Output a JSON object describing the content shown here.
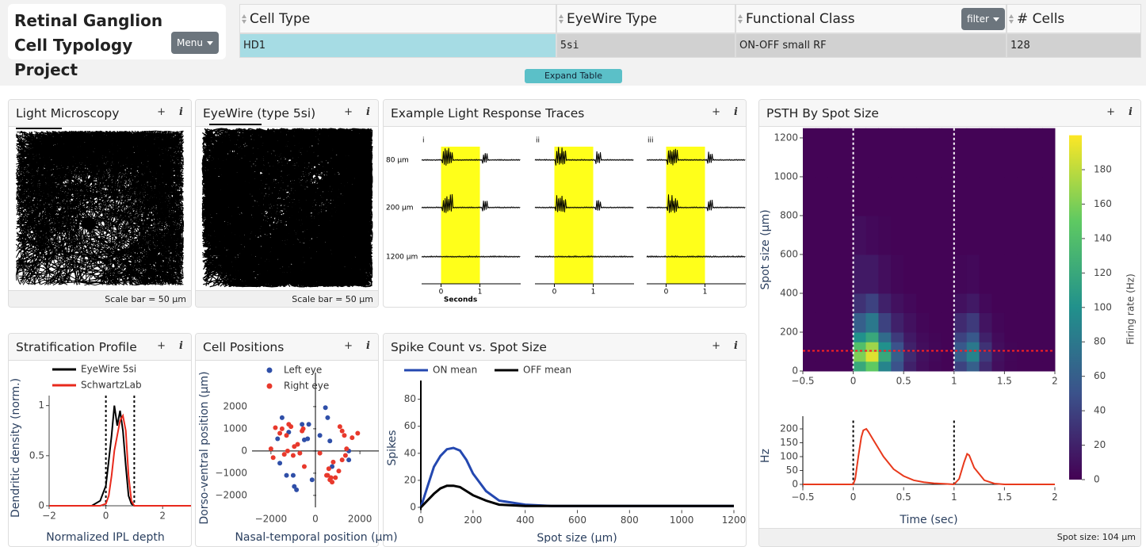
{
  "header": {
    "title": "Retinal Ganglion Cell Typology Project",
    "menu": "Menu"
  },
  "table": {
    "columns": [
      "Cell Type",
      "EyeWire Type",
      "Functional Class",
      "# Cells"
    ],
    "filter": "filter",
    "rows": [
      [
        "HD1",
        "5si",
        "ON-OFF small RF",
        128
      ]
    ],
    "expand": "Expand Table"
  },
  "panel_buttons": {
    "add": "+",
    "info": "i"
  },
  "panels": [
    {
      "title": "Light Microscopy",
      "footer": "Scale bar = 50 µm"
    },
    {
      "title": "EyeWire (type 5si)",
      "footer": "Scale bar = 50 µm"
    },
    {
      "title": "Example Light Response Traces",
      "chart": {
        "type": "traces",
        "groups": [
          "i",
          "ii",
          "iii"
        ],
        "rows": [
          "80 µm",
          "200 µm",
          "1200 µm"
        ],
        "xlabel": "Seconds",
        "xlim": [
          -0.5,
          2.05
        ],
        "xticks": [
          0,
          1
        ],
        "stimulus": [
          0,
          1
        ]
      }
    },
    {
      "title": "Stratification Profile",
      "chart": {
        "type": "line",
        "ylabel": "Dendritic density (norm.)",
        "xlabel": "Normalized IPL depth",
        "x": [
          -2,
          -0.5,
          -0.2,
          0,
          0.1,
          0.2,
          0.3,
          0.4,
          0.5,
          0.6,
          0.7,
          0.8,
          0.9,
          1,
          1.2,
          3
        ],
        "series": [
          {
            "name": "EyeWire 5si",
            "color": "#000000",
            "values": [
              0,
              0,
              0.05,
              0.2,
              0.45,
              0.7,
              1,
              0.8,
              0.95,
              0.75,
              0.4,
              0.1,
              0.02,
              0,
              0,
              0
            ]
          },
          {
            "name": "SchwartzLab",
            "color": "#e8291c",
            "values": [
              0,
              0,
              0,
              0.02,
              0.1,
              0.3,
              0.55,
              0.7,
              0.85,
              0.9,
              0.75,
              0.3,
              0.05,
              0,
              0,
              0
            ]
          }
        ],
        "xlim": [
          -2,
          3
        ],
        "ylim": [
          0,
          1.1
        ],
        "xticks": [
          {
            "value": -2,
            "label": "−2"
          },
          0,
          2
        ],
        "yticks": [
          0,
          0.5,
          1
        ],
        "vlines": [
          0,
          1
        ]
      }
    },
    {
      "title": "Cell Positions",
      "chart": {
        "type": "scatter",
        "ylabel": "Dorso-ventral position (µm)",
        "xlabel": "Nasal-temporal position (µm)",
        "series": [
          {
            "name": "Left eye",
            "color": "#2f4fa8",
            "x": [
              -1500,
              -1200,
              -600,
              -300,
              -500,
              450,
              550,
              200,
              650,
              1500,
              750,
              1500,
              -1600,
              -1000,
              -950,
              -850,
              -150,
              -1700,
              -350,
              -1300
            ],
            "values": [
              1500,
              850,
              1200,
              1200,
              500,
              1950,
              1500,
              700,
              450,
              -400,
              -700,
              0,
              -550,
              -1100,
              -1600,
              -1750,
              -1300,
              550,
              550,
              -1100
            ]
          },
          {
            "name": "Right eye",
            "color": "#e8392c",
            "x": [
              -1800,
              -1600,
              -1500,
              -1300,
              -1200,
              -1100,
              -1000,
              -950,
              -800,
              -700,
              -600,
              -550,
              -2000,
              -1900,
              -1400,
              -1250,
              -500,
              1200,
              1300,
              1400,
              1650,
              1900,
              1100,
              800,
              600,
              500,
              700,
              900,
              1050,
              1200,
              1350,
              650,
              750,
              200,
              550
            ],
            "values": [
              1050,
              800,
              1000,
              700,
              1200,
              1100,
              -200,
              200,
              300,
              -100,
              900,
              1000,
              100,
              -300,
              -150,
              0,
              -700,
              900,
              700,
              100,
              600,
              800,
              1100,
              -500,
              -800,
              -1100,
              -1200,
              -1200,
              -900,
              -400,
              -200,
              -1300,
              -1400,
              -100,
              -1100
            ]
          }
        ],
        "xlim": [
          -2850,
          2850
        ],
        "ylim": [
          -2540,
          2460
        ],
        "xticks": [
          {
            "value": -2000,
            "label": "−2000"
          },
          0,
          2000
        ],
        "yticks": [
          {
            "value": -2000,
            "label": "−2000"
          },
          {
            "value": -1000,
            "label": "−1000"
          },
          0,
          1000,
          2000
        ]
      }
    },
    {
      "title": "Spike Count vs. Spot Size",
      "chart": {
        "type": "line",
        "ylabel": "Spikes",
        "xlabel": "Spot size (µm)",
        "x": [
          0,
          25,
          50,
          75,
          100,
          125,
          150,
          175,
          200,
          250,
          300,
          400,
          500,
          600,
          800,
          1000,
          1200
        ],
        "series": [
          {
            "name": "ON mean",
            "color": "#2448b0",
            "values": [
              0,
              15,
              30,
              38,
              43,
              44,
              42,
              35,
              25,
              12,
              5,
              2,
              1,
              1,
              1,
              1,
              1
            ]
          },
          {
            "name": "OFF mean",
            "color": "#000000",
            "values": [
              0,
              5,
              10,
              14,
              16,
              16,
              15,
              12,
              9,
              5,
              2,
              1,
              1,
              1,
              1,
              1,
              1
            ]
          }
        ],
        "xlim": [
          0,
          1200
        ],
        "ylim": [
          -2,
          88
        ],
        "xticks": [
          0,
          200,
          400,
          600,
          800,
          1000,
          1200
        ],
        "yticks": [
          0,
          20,
          40,
          60,
          80
        ]
      }
    },
    {
      "title": "PSTH By Spot Size",
      "footer": "Spot size: 104 µm",
      "heatmap": {
        "type": "heatmap",
        "ylabel": "Spot size (µm)",
        "colorbar_label": "Firing rate (Hz)",
        "x_edges": [
          -0.5,
          -0.375,
          -0.25,
          -0.125,
          0,
          0.125,
          0.25,
          0.375,
          0.5,
          0.625,
          0.75,
          0.875,
          1,
          1.125,
          1.25,
          1.375,
          1.5,
          1.625,
          1.75,
          1.875,
          2
        ],
        "y_edges": [
          0,
          50,
          100,
          150,
          200,
          300,
          400,
          600,
          800,
          1000,
          1250
        ],
        "z": [
          [
            2,
            2,
            2,
            2,
            120,
            150,
            90,
            50,
            20,
            8,
            4,
            2,
            40,
            60,
            25,
            8,
            3,
            2,
            2,
            2
          ],
          [
            2,
            2,
            2,
            2,
            160,
            190,
            120,
            60,
            25,
            10,
            5,
            2,
            60,
            90,
            35,
            10,
            4,
            2,
            2,
            2
          ],
          [
            2,
            2,
            2,
            2,
            140,
            170,
            100,
            50,
            20,
            8,
            4,
            2,
            55,
            80,
            30,
            8,
            3,
            2,
            2,
            2
          ],
          [
            2,
            2,
            2,
            2,
            100,
            120,
            70,
            35,
            15,
            6,
            3,
            2,
            40,
            55,
            20,
            6,
            2,
            2,
            2,
            2
          ],
          [
            2,
            2,
            2,
            2,
            60,
            80,
            40,
            20,
            10,
            4,
            2,
            2,
            25,
            35,
            12,
            4,
            2,
            2,
            2,
            2
          ],
          [
            2,
            2,
            2,
            2,
            30,
            40,
            20,
            10,
            5,
            2,
            2,
            2,
            10,
            15,
            5,
            2,
            2,
            2,
            2,
            2
          ],
          [
            2,
            2,
            2,
            2,
            15,
            15,
            8,
            4,
            2,
            2,
            2,
            2,
            4,
            5,
            2,
            2,
            2,
            2,
            2,
            2
          ],
          [
            2,
            2,
            2,
            2,
            8,
            5,
            3,
            2,
            2,
            2,
            2,
            2,
            2,
            2,
            2,
            2,
            2,
            2,
            2,
            2
          ],
          [
            2,
            2,
            2,
            2,
            2,
            2,
            2,
            2,
            2,
            2,
            2,
            2,
            2,
            2,
            2,
            2,
            2,
            2,
            2,
            2
          ],
          [
            2,
            2,
            2,
            2,
            2,
            2,
            2,
            2,
            2,
            2,
            2,
            2,
            2,
            2,
            2,
            2,
            2,
            2,
            2,
            2
          ]
        ],
        "xlim": [
          -0.5,
          2
        ],
        "ylim": [
          0,
          1250
        ],
        "zlim": [
          0,
          200
        ],
        "xticks": [
          {
            "value": -0.5,
            "label": "−0.5"
          },
          0,
          0.5,
          1,
          1.5,
          2
        ],
        "yticks": [
          0,
          200,
          400,
          600,
          800,
          1000,
          1200
        ],
        "zticks": [
          0,
          20,
          40,
          60,
          80,
          100,
          120,
          140,
          160,
          180
        ],
        "vlines": [
          0,
          1
        ],
        "hline": 104
      },
      "psth": {
        "type": "line",
        "ylabel": "Hz",
        "xlabel": "Time (sec)",
        "x": [
          -0.5,
          0,
          0.02,
          0.05,
          0.08,
          0.1,
          0.13,
          0.15,
          0.2,
          0.3,
          0.4,
          0.5,
          0.6,
          0.7,
          0.8,
          0.9,
          1,
          1.05,
          1.1,
          1.13,
          1.15,
          1.2,
          1.3,
          1.4,
          1.5,
          2
        ],
        "series": [
          {
            "color": "#e8391c",
            "values": [
              0,
              0,
              20,
              100,
              170,
              195,
              200,
              190,
              160,
              100,
              55,
              30,
              15,
              8,
              4,
              2,
              0,
              20,
              80,
              110,
              105,
              60,
              15,
              3,
              0,
              0
            ]
          }
        ],
        "xlim": [
          -0.5,
          2
        ],
        "ylim": [
          -10,
          230
        ],
        "xticks": [
          {
            "value": -0.5,
            "label": "−0.5"
          },
          0,
          0.5,
          1,
          1.5,
          2
        ],
        "yticks": [
          0,
          50,
          100,
          150,
          200
        ],
        "vlines": [
          0,
          1
        ]
      }
    }
  ]
}
